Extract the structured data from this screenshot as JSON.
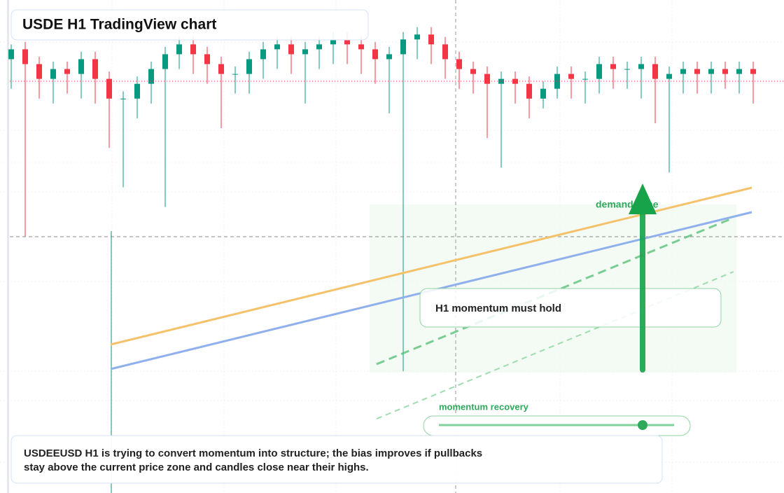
{
  "header": {
    "title": "USDE H1 TradingView chart"
  },
  "chart_data": {
    "type": "candlestick",
    "ylim": [
      0,
      100
    ],
    "up_color": "#089981",
    "down_color": "#f23645",
    "open": [
      88,
      90,
      87,
      84,
      86,
      85,
      88,
      84,
      80,
      80,
      83,
      86,
      89,
      91,
      89,
      87,
      85,
      85,
      88,
      90,
      91,
      89,
      90,
      91,
      92,
      91,
      90,
      88,
      89,
      92,
      93,
      91,
      88,
      86,
      85,
      83,
      84,
      83,
      80,
      82,
      85,
      84,
      84,
      87,
      86,
      86,
      87,
      84,
      85,
      86,
      85,
      86,
      85,
      86
    ],
    "close": [
      90,
      87,
      84,
      86,
      85,
      88,
      84,
      80,
      80,
      83,
      86,
      89,
      91,
      89,
      87,
      85,
      85,
      88,
      90,
      91,
      89,
      90,
      91,
      92,
      91,
      90,
      88,
      89,
      92,
      93,
      91,
      88,
      86,
      85,
      83,
      84,
      83,
      80,
      82,
      85,
      84,
      84,
      87,
      86,
      86,
      87,
      84,
      85,
      86,
      85,
      86,
      85,
      86,
      85
    ],
    "high": [
      91,
      91.5,
      88.5,
      87.5,
      87.5,
      89.5,
      89.5,
      85.5,
      81.5,
      84.5,
      87.5,
      90.5,
      92.5,
      92.5,
      90.5,
      88.5,
      86.5,
      89.5,
      91.5,
      92.5,
      92.5,
      91.5,
      92.5,
      93.5,
      93.5,
      92.5,
      91.5,
      90.5,
      93.5,
      94.5,
      94.5,
      92.5,
      89.5,
      87.5,
      86.5,
      85.5,
      85.5,
      84.5,
      83.5,
      86.5,
      86.5,
      85.5,
      88.5,
      88.5,
      87.5,
      88.5,
      88.5,
      86.5,
      87.5,
      87.5,
      87.5,
      87.5,
      87.5,
      87.5
    ],
    "low": [
      82,
      52,
      80,
      79,
      81,
      80,
      79,
      70,
      62,
      76,
      79,
      58,
      86,
      85,
      83,
      74,
      81,
      81,
      84,
      86,
      85,
      79,
      86,
      87,
      87,
      85,
      83,
      77,
      24.7,
      88,
      87,
      84,
      82,
      81,
      72,
      66,
      79,
      76,
      78,
      80,
      80,
      79,
      81,
      82,
      82,
      80,
      75,
      65,
      81,
      81,
      81,
      82,
      81,
      79
    ]
  },
  "annotations": {
    "zone_label": "demand zone",
    "box_label": "H1 momentum must hold",
    "recovery_label": "momentum recovery"
  },
  "note": {
    "line1": "USDEEUSD H1 is trying to convert momentum into structure; the bias improves if pullbacks",
    "line2": "stay above the current price zone and candles close near their highs."
  }
}
